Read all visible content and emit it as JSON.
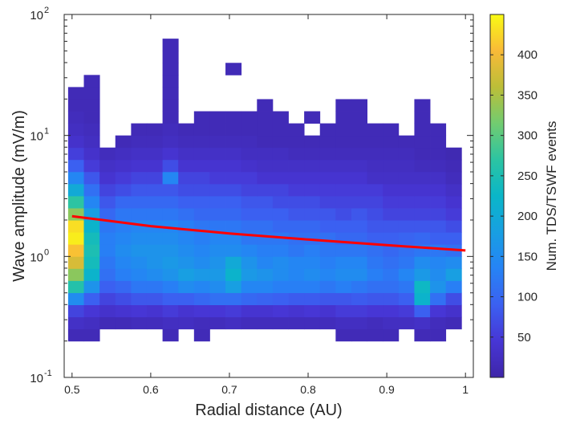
{
  "chart_data": {
    "type": "heatmap",
    "title": "",
    "xlabel": "Radial distance (AU)",
    "ylabel": "Wave amplitude (mV/m)",
    "colorbar_label": "Num. TDS/TSWF events",
    "colormap": "parula",
    "x_range": [
      0.49,
      1.01
    ],
    "y_range_log10": [
      -1,
      2
    ],
    "y_scale": "log",
    "x_ticks": [
      "0.5",
      "0.6",
      "0.7",
      "0.8",
      "0.9",
      "1"
    ],
    "x_tick_values": [
      0.5,
      0.6,
      0.7,
      0.8,
      0.9,
      1.0
    ],
    "y_ticks": [
      {
        "base": "10",
        "exp": "-1",
        "value": 0.1
      },
      {
        "base": "10",
        "exp": "0",
        "value": 1
      },
      {
        "base": "10",
        "exp": "1",
        "value": 10
      },
      {
        "base": "10",
        "exp": "2",
        "value": 100
      }
    ],
    "colorbar_ticks": [
      "50",
      "100",
      "150",
      "200",
      "250",
      "300",
      "350",
      "400"
    ],
    "colorbar_tick_values": [
      50,
      100,
      150,
      200,
      250,
      300,
      350,
      400
    ],
    "colorbar_range": [
      0,
      450
    ],
    "bin_x_edges": [
      0.495,
      0.515,
      0.535,
      0.555,
      0.575,
      0.595,
      0.615,
      0.635,
      0.655,
      0.675,
      0.695,
      0.715,
      0.735,
      0.755,
      0.775,
      0.795,
      0.815,
      0.835,
      0.855,
      0.875,
      0.895,
      0.915,
      0.935,
      0.955,
      0.975,
      0.995
    ],
    "bin_y_low_log10": [
      -0.7,
      -0.6,
      -0.5,
      -0.4,
      -0.3,
      -0.2,
      -0.1,
      0.0,
      0.1,
      0.2,
      0.3,
      0.4,
      0.5,
      0.6,
      0.7,
      0.8,
      0.9,
      1.0,
      1.1,
      1.2,
      1.3,
      1.4,
      1.5,
      1.6,
      1.7,
      1.8,
      1.9
    ],
    "bin_y_step_log10": 0.1,
    "counts": [
      [
        15,
        15,
        0,
        0,
        0,
        0,
        15,
        0,
        15,
        0,
        0,
        0,
        0,
        0,
        0,
        0,
        0,
        15,
        15,
        15,
        15,
        0,
        15,
        15,
        0
      ],
      [
        30,
        25,
        15,
        15,
        20,
        20,
        25,
        25,
        20,
        20,
        25,
        20,
        20,
        20,
        20,
        20,
        20,
        25,
        25,
        20,
        25,
        25,
        30,
        20,
        15
      ],
      [
        60,
        45,
        35,
        40,
        45,
        40,
        50,
        40,
        45,
        45,
        50,
        40,
        40,
        45,
        40,
        45,
        40,
        50,
        50,
        45,
        45,
        50,
        90,
        45,
        35
      ],
      [
        150,
        90,
        60,
        70,
        80,
        80,
        90,
        90,
        100,
        110,
        110,
        100,
        95,
        90,
        85,
        85,
        80,
        80,
        85,
        80,
        80,
        90,
        220,
        110,
        70
      ],
      [
        260,
        160,
        90,
        100,
        120,
        120,
        130,
        150,
        140,
        150,
        180,
        140,
        140,
        130,
        130,
        130,
        120,
        130,
        120,
        110,
        110,
        120,
        230,
        160,
        130
      ],
      [
        330,
        220,
        110,
        130,
        140,
        150,
        160,
        180,
        170,
        170,
        220,
        170,
        160,
        150,
        140,
        150,
        140,
        150,
        150,
        130,
        120,
        140,
        170,
        150,
        180
      ],
      [
        380,
        240,
        120,
        140,
        150,
        160,
        170,
        160,
        150,
        160,
        200,
        160,
        140,
        150,
        140,
        140,
        130,
        140,
        140,
        120,
        110,
        120,
        150,
        140,
        150
      ],
      [
        410,
        250,
        130,
        150,
        160,
        160,
        160,
        150,
        140,
        150,
        150,
        140,
        130,
        130,
        120,
        130,
        120,
        120,
        120,
        110,
        100,
        110,
        120,
        120,
        110
      ],
      [
        440,
        240,
        130,
        140,
        150,
        150,
        150,
        140,
        130,
        140,
        140,
        120,
        120,
        120,
        110,
        110,
        110,
        100,
        100,
        90,
        90,
        95,
        100,
        90,
        90
      ],
      [
        430,
        220,
        120,
        130,
        140,
        140,
        140,
        130,
        120,
        120,
        120,
        110,
        110,
        100,
        100,
        100,
        90,
        90,
        90,
        80,
        80,
        80,
        80,
        80,
        70
      ],
      [
        330,
        180,
        100,
        120,
        120,
        120,
        120,
        110,
        100,
        100,
        100,
        90,
        90,
        90,
        80,
        80,
        80,
        70,
        80,
        70,
        60,
        60,
        60,
        60,
        50
      ],
      [
        270,
        140,
        80,
        100,
        100,
        100,
        100,
        90,
        90,
        90,
        90,
        80,
        80,
        70,
        70,
        70,
        60,
        60,
        60,
        60,
        50,
        50,
        50,
        50,
        40
      ],
      [
        200,
        110,
        60,
        70,
        80,
        80,
        80,
        70,
        70,
        70,
        70,
        60,
        60,
        60,
        50,
        50,
        50,
        50,
        50,
        50,
        40,
        40,
        40,
        40,
        30
      ],
      [
        140,
        80,
        40,
        50,
        60,
        60,
        140,
        60,
        60,
        50,
        50,
        50,
        40,
        40,
        40,
        40,
        40,
        40,
        40,
        30,
        30,
        30,
        30,
        30,
        20
      ],
      [
        90,
        50,
        30,
        35,
        40,
        40,
        70,
        40,
        40,
        40,
        40,
        35,
        30,
        30,
        30,
        30,
        30,
        30,
        30,
        25,
        25,
        25,
        20,
        20,
        15
      ],
      [
        55,
        35,
        20,
        25,
        30,
        30,
        40,
        30,
        30,
        30,
        30,
        25,
        25,
        25,
        20,
        20,
        20,
        20,
        20,
        20,
        20,
        20,
        15,
        15,
        10
      ],
      [
        35,
        25,
        0,
        15,
        20,
        20,
        25,
        20,
        20,
        20,
        20,
        20,
        15,
        15,
        15,
        15,
        15,
        15,
        15,
        15,
        15,
        15,
        15,
        15,
        0
      ],
      [
        25,
        20,
        0,
        0,
        15,
        15,
        20,
        15,
        15,
        15,
        15,
        15,
        15,
        15,
        15,
        0,
        15,
        15,
        15,
        15,
        15,
        0,
        15,
        15,
        0
      ],
      [
        20,
        15,
        0,
        0,
        0,
        0,
        15,
        0,
        15,
        15,
        15,
        15,
        15,
        15,
        0,
        15,
        0,
        15,
        15,
        0,
        0,
        0,
        15,
        0,
        0
      ],
      [
        15,
        15,
        0,
        0,
        0,
        0,
        15,
        0,
        0,
        0,
        0,
        0,
        15,
        0,
        0,
        0,
        0,
        15,
        15,
        0,
        0,
        0,
        15,
        0,
        0
      ],
      [
        15,
        15,
        0,
        0,
        0,
        0,
        15,
        0,
        0,
        0,
        0,
        0,
        0,
        0,
        0,
        0,
        0,
        0,
        0,
        0,
        0,
        0,
        0,
        0,
        0
      ],
      [
        0,
        15,
        0,
        0,
        0,
        0,
        15,
        0,
        0,
        0,
        0,
        0,
        0,
        0,
        0,
        0,
        0,
        0,
        0,
        0,
        0,
        0,
        0,
        0,
        0
      ],
      [
        0,
        0,
        0,
        0,
        0,
        0,
        15,
        0,
        0,
        0,
        15,
        0,
        0,
        0,
        0,
        0,
        0,
        0,
        0,
        0,
        0,
        0,
        0,
        0,
        0
      ],
      [
        0,
        0,
        0,
        0,
        0,
        0,
        15,
        0,
        0,
        0,
        0,
        0,
        0,
        0,
        0,
        0,
        0,
        0,
        0,
        0,
        0,
        0,
        0,
        0,
        0
      ],
      [
        0,
        0,
        0,
        0,
        0,
        0,
        15,
        0,
        0,
        0,
        0,
        0,
        0,
        0,
        0,
        0,
        0,
        0,
        0,
        0,
        0,
        0,
        0,
        0,
        0
      ],
      [
        0,
        0,
        0,
        0,
        0,
        0,
        0,
        0,
        0,
        0,
        0,
        0,
        0,
        0,
        0,
        0,
        0,
        0,
        0,
        0,
        0,
        0,
        0,
        0,
        0
      ],
      [
        0,
        0,
        0,
        0,
        0,
        0,
        0,
        0,
        0,
        0,
        0,
        0,
        0,
        0,
        0,
        0,
        0,
        0,
        0,
        0,
        0,
        0,
        0,
        0,
        0
      ]
    ],
    "fit_line": {
      "color": "#ff0000",
      "points": [
        {
          "x": 0.5,
          "y": 2.15
        },
        {
          "x": 0.6,
          "y": 1.78
        },
        {
          "x": 0.7,
          "y": 1.55
        },
        {
          "x": 0.8,
          "y": 1.38
        },
        {
          "x": 0.9,
          "y": 1.24
        },
        {
          "x": 1.0,
          "y": 1.12
        }
      ]
    },
    "grid": false,
    "colorbar_position": "right"
  }
}
